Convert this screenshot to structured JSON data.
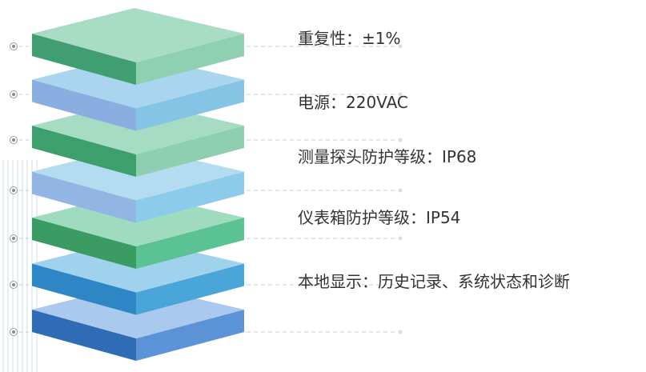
{
  "specs": [
    "重复性：±1%",
    "电源：220VAC",
    "测量探头防护等级：IP68",
    "仪表箱防护等级：IP54",
    "本地显示：历史记录、系统状态和诊断"
  ]
}
